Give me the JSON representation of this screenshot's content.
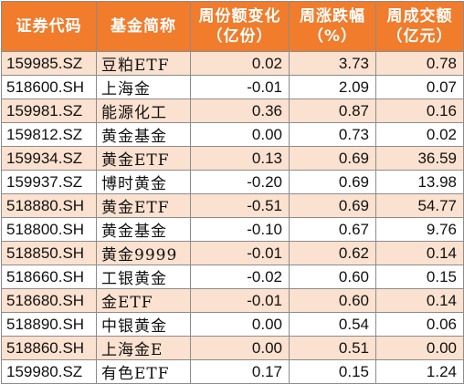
{
  "columns": {
    "code": "证券代码",
    "name": "基金简称",
    "share_change_line1": "周份额变化",
    "share_change_line2": "（亿份）",
    "weekly_change_line1": "周涨跌幅",
    "weekly_change_line2": "（%）",
    "turnover_line1": "周成交额",
    "turnover_line2": "（亿元）"
  },
  "rows": [
    {
      "code": "159985.SZ",
      "name": "豆粕ETF",
      "share_change": "0.02",
      "weekly_change": "3.73",
      "turnover": "0.78"
    },
    {
      "code": "518600.SH",
      "name": "上海金",
      "share_change": "-0.01",
      "weekly_change": "2.09",
      "turnover": "0.07"
    },
    {
      "code": "159981.SZ",
      "name": "能源化工",
      "share_change": "0.36",
      "weekly_change": "0.87",
      "turnover": "0.16"
    },
    {
      "code": "159812.SZ",
      "name": "黄金基金",
      "share_change": "0.00",
      "weekly_change": "0.73",
      "turnover": "0.02"
    },
    {
      "code": "159934.SZ",
      "name": "黄金ETF",
      "share_change": "0.13",
      "weekly_change": "0.69",
      "turnover": "36.59"
    },
    {
      "code": "159937.SZ",
      "name": "博时黄金",
      "share_change": "-0.20",
      "weekly_change": "0.69",
      "turnover": "13.98"
    },
    {
      "code": "518880.SH",
      "name": "黄金ETF",
      "share_change": "-0.51",
      "weekly_change": "0.69",
      "turnover": "54.77"
    },
    {
      "code": "518800.SH",
      "name": "黄金基金",
      "share_change": "-0.10",
      "weekly_change": "0.67",
      "turnover": "9.76"
    },
    {
      "code": "518850.SH",
      "name": "黄金9999",
      "share_change": "-0.01",
      "weekly_change": "0.62",
      "turnover": "0.14"
    },
    {
      "code": "518660.SH",
      "name": "工银黄金",
      "share_change": "-0.02",
      "weekly_change": "0.60",
      "turnover": "0.15"
    },
    {
      "code": "518680.SH",
      "name": "金ETF",
      "share_change": "-0.01",
      "weekly_change": "0.60",
      "turnover": "0.14"
    },
    {
      "code": "518890.SH",
      "name": "中银黄金",
      "share_change": "0.00",
      "weekly_change": "0.54",
      "turnover": "0.06"
    },
    {
      "code": "518860.SH",
      "name": "上海金E",
      "share_change": "0.00",
      "weekly_change": "0.51",
      "turnover": "0.00"
    },
    {
      "code": "159980.SZ",
      "name": "有色ETF",
      "share_change": "0.17",
      "weekly_change": "0.15",
      "turnover": "1.24"
    }
  ],
  "colors": {
    "header_bg": "#f07c2c",
    "header_text": "#ffffff",
    "stripe_bg": "#fbe1cf",
    "plain_bg": "#ffffff",
    "border": "#8c8c8c"
  }
}
